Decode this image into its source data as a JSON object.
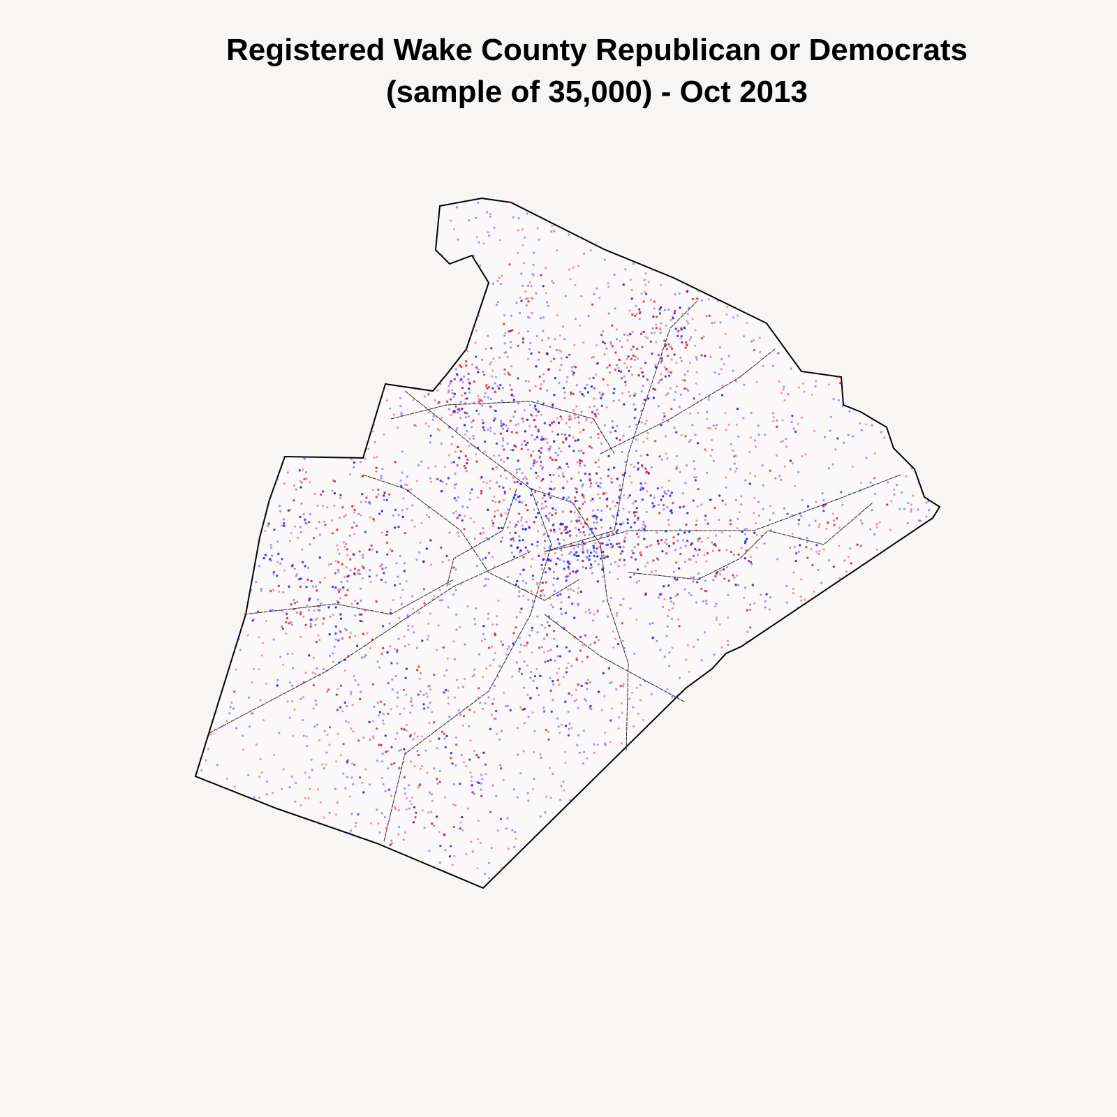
{
  "map": {
    "title_lines": [
      "Registered Wake County Republican or Democrats",
      "(sample of 35,000) - Oct 2013"
    ]
  }
}
